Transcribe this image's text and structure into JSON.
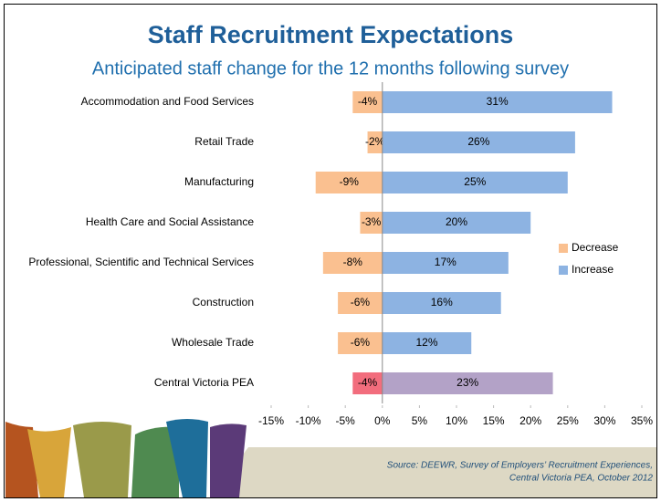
{
  "chart_data": {
    "type": "diverging-bar",
    "title": "Staff Recruitment Expectations",
    "subtitle": "Anticipated staff change for the 12 months following survey",
    "categories": [
      "Accommodation and Food Services",
      "Retail Trade",
      "Manufacturing",
      "Health Care and Social Assistance",
      "Professional, Scientific and Technical Services",
      "Construction",
      "Wholesale Trade",
      "Central Victoria PEA"
    ],
    "series": [
      {
        "name": "Decrease",
        "color": "#fac090",
        "colors": [
          "#fac090",
          "#fac090",
          "#fac090",
          "#fac090",
          "#fac090",
          "#fac090",
          "#fac090",
          "#f26d7d"
        ],
        "values": [
          -4,
          -2,
          -9,
          -3,
          -8,
          -6,
          -6,
          -4
        ],
        "value_labels": [
          "-4%",
          "-2%",
          "-9%",
          "-3%",
          "-8%",
          "-6%",
          "-6%",
          "-4%"
        ]
      },
      {
        "name": "Increase",
        "color": "#8db3e2",
        "colors": [
          "#8db3e2",
          "#8db3e2",
          "#8db3e2",
          "#8db3e2",
          "#8db3e2",
          "#8db3e2",
          "#8db3e2",
          "#b3a2c7"
        ],
        "values": [
          31,
          26,
          25,
          20,
          17,
          16,
          12,
          23
        ],
        "value_labels": [
          "31%",
          "26%",
          "25%",
          "20%",
          "17%",
          "16%",
          "12%",
          "23%"
        ]
      }
    ],
    "xlim": [
      -15,
      35
    ],
    "xticks": [
      {
        "value": -15,
        "label": "-15%"
      },
      {
        "value": -10,
        "label": "-10%"
      },
      {
        "value": -5,
        "label": "-5%"
      },
      {
        "value": 0,
        "label": "0%"
      },
      {
        "value": 5,
        "label": "5%"
      },
      {
        "value": 10,
        "label": "10%"
      },
      {
        "value": 15,
        "label": "15%"
      },
      {
        "value": 20,
        "label": "20%"
      },
      {
        "value": 25,
        "label": "25%"
      },
      {
        "value": 30,
        "label": "30%"
      },
      {
        "value": 35,
        "label": "35%"
      }
    ],
    "legend": "right",
    "source": [
      "Source:  DEEWR, Survey of Employers’ Recruitment Experiences,",
      "Central Victoria PEA, October 2012"
    ]
  }
}
